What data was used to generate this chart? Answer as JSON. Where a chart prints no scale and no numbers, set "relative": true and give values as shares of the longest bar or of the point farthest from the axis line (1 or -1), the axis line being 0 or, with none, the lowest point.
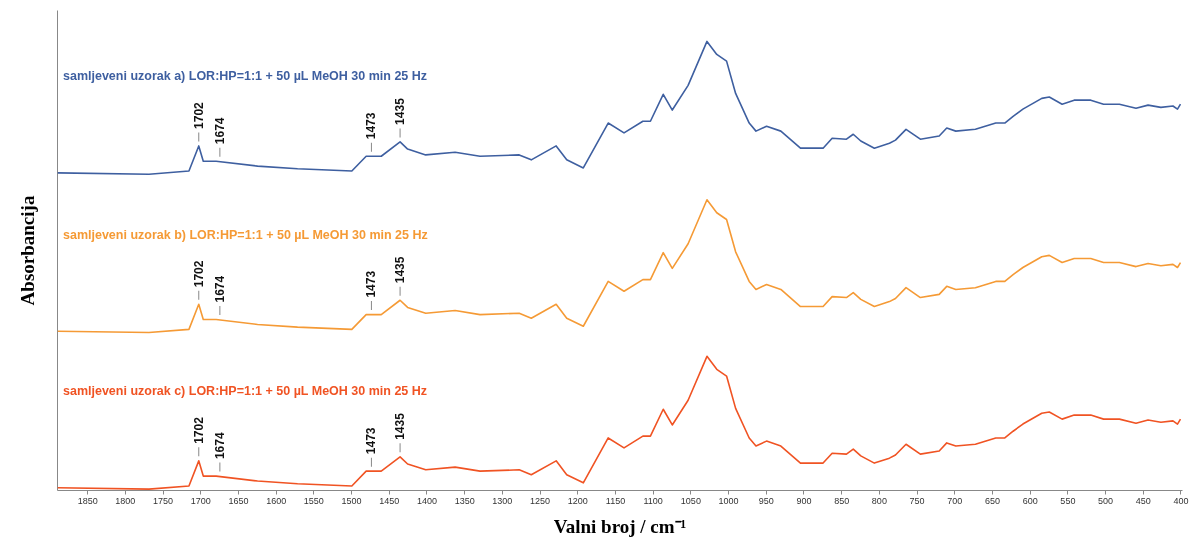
{
  "chart_data": {
    "type": "line",
    "relative": true,
    "xlabel": "Valni broj / cm⁻¹",
    "ylabel": "Absorbancija",
    "xlim": [
      1890,
      398
    ],
    "xticks": [
      1850,
      1800,
      1750,
      1700,
      1650,
      1600,
      1550,
      1500,
      1450,
      1400,
      1350,
      1300,
      1250,
      1200,
      1150,
      1100,
      1050,
      1000,
      950,
      900,
      850,
      800,
      750,
      700,
      650,
      600,
      550,
      500,
      450,
      400
    ],
    "x": [
      1889,
      1768,
      1715,
      1702,
      1696,
      1679,
      1624,
      1571,
      1499,
      1480,
      1460,
      1435,
      1425,
      1401,
      1362,
      1329,
      1277,
      1261,
      1228,
      1214,
      1192,
      1159,
      1138,
      1113,
      1103,
      1086,
      1074,
      1053,
      1028,
      1015,
      1002,
      990,
      972,
      963,
      949,
      930,
      904,
      874,
      862,
      843,
      834,
      824,
      806,
      786,
      778,
      764,
      745,
      720,
      710,
      698,
      672,
      645,
      633,
      622,
      609,
      584,
      574,
      557,
      541,
      519,
      502,
      481,
      459,
      443,
      426,
      410,
      404,
      400
    ],
    "series": [
      {
        "name": "samljeveni uzorak a) LOR:HP=1:1 + 50 µL MeOH 30 min 25 Hz",
        "color": "#3e5fa0",
        "values": [
          0.707,
          0.704,
          0.711,
          0.767,
          0.733,
          0.733,
          0.722,
          0.716,
          0.711,
          0.744,
          0.744,
          0.776,
          0.76,
          0.747,
          0.753,
          0.744,
          0.747,
          0.736,
          0.767,
          0.736,
          0.718,
          0.818,
          0.796,
          0.822,
          0.822,
          0.882,
          0.847,
          0.902,
          1.0,
          0.971,
          0.956,
          0.884,
          0.818,
          0.8,
          0.811,
          0.8,
          0.762,
          0.762,
          0.784,
          0.782,
          0.793,
          0.778,
          0.762,
          0.773,
          0.78,
          0.804,
          0.782,
          0.789,
          0.807,
          0.8,
          0.804,
          0.818,
          0.818,
          0.833,
          0.849,
          0.873,
          0.876,
          0.86,
          0.869,
          0.869,
          0.86,
          0.86,
          0.851,
          0.858,
          0.853,
          0.856,
          0.849,
          0.86
        ]
      },
      {
        "name": "samljeveni uzorak b) LOR:HP=1:1 + 50 µL MeOH 30 min 25 Hz",
        "color": "#f59a35",
        "values": [
          0.354,
          0.351,
          0.358,
          0.414,
          0.38,
          0.38,
          0.369,
          0.363,
          0.358,
          0.391,
          0.391,
          0.423,
          0.407,
          0.394,
          0.4,
          0.391,
          0.394,
          0.383,
          0.414,
          0.383,
          0.365,
          0.465,
          0.443,
          0.469,
          0.469,
          0.529,
          0.494,
          0.549,
          0.647,
          0.618,
          0.603,
          0.531,
          0.465,
          0.447,
          0.458,
          0.447,
          0.409,
          0.409,
          0.431,
          0.429,
          0.44,
          0.425,
          0.409,
          0.42,
          0.427,
          0.451,
          0.429,
          0.436,
          0.454,
          0.447,
          0.451,
          0.465,
          0.465,
          0.48,
          0.496,
          0.52,
          0.523,
          0.507,
          0.516,
          0.516,
          0.507,
          0.507,
          0.498,
          0.505,
          0.5,
          0.503,
          0.496,
          0.507
        ]
      },
      {
        "name": "samljeveni uzorak c) LOR:HP=1:1 + 50 µL MeOH 30 min 25 Hz",
        "color": "#f05323",
        "values": [
          0.005,
          0.002,
          0.009,
          0.065,
          0.031,
          0.031,
          0.02,
          0.014,
          0.009,
          0.042,
          0.042,
          0.074,
          0.058,
          0.045,
          0.051,
          0.042,
          0.045,
          0.034,
          0.065,
          0.034,
          0.016,
          0.116,
          0.094,
          0.12,
          0.12,
          0.18,
          0.145,
          0.2,
          0.298,
          0.269,
          0.254,
          0.182,
          0.116,
          0.098,
          0.109,
          0.098,
          0.06,
          0.06,
          0.082,
          0.08,
          0.091,
          0.076,
          0.06,
          0.071,
          0.078,
          0.102,
          0.08,
          0.087,
          0.105,
          0.098,
          0.102,
          0.116,
          0.116,
          0.131,
          0.147,
          0.171,
          0.174,
          0.158,
          0.167,
          0.167,
          0.158,
          0.158,
          0.149,
          0.156,
          0.151,
          0.154,
          0.147,
          0.158
        ]
      }
    ],
    "annotations": [
      {
        "text": "1702",
        "x": 1702,
        "y": 0.767
      },
      {
        "text": "1674",
        "x": 1674,
        "y": 0.733
      },
      {
        "text": "1473",
        "x": 1473,
        "y": 0.744
      },
      {
        "text": "1435",
        "x": 1435,
        "y": 0.776
      },
      {
        "text": "1702",
        "x": 1702,
        "y": 0.414
      },
      {
        "text": "1674",
        "x": 1674,
        "y": 0.38
      },
      {
        "text": "1473",
        "x": 1473,
        "y": 0.391
      },
      {
        "text": "1435",
        "x": 1435,
        "y": 0.423
      },
      {
        "text": "1702",
        "x": 1702,
        "y": 0.065
      },
      {
        "text": "1674",
        "x": 1674,
        "y": 0.031
      },
      {
        "text": "1473",
        "x": 1473,
        "y": 0.042
      },
      {
        "text": "1435",
        "x": 1435,
        "y": 0.074
      }
    ]
  }
}
